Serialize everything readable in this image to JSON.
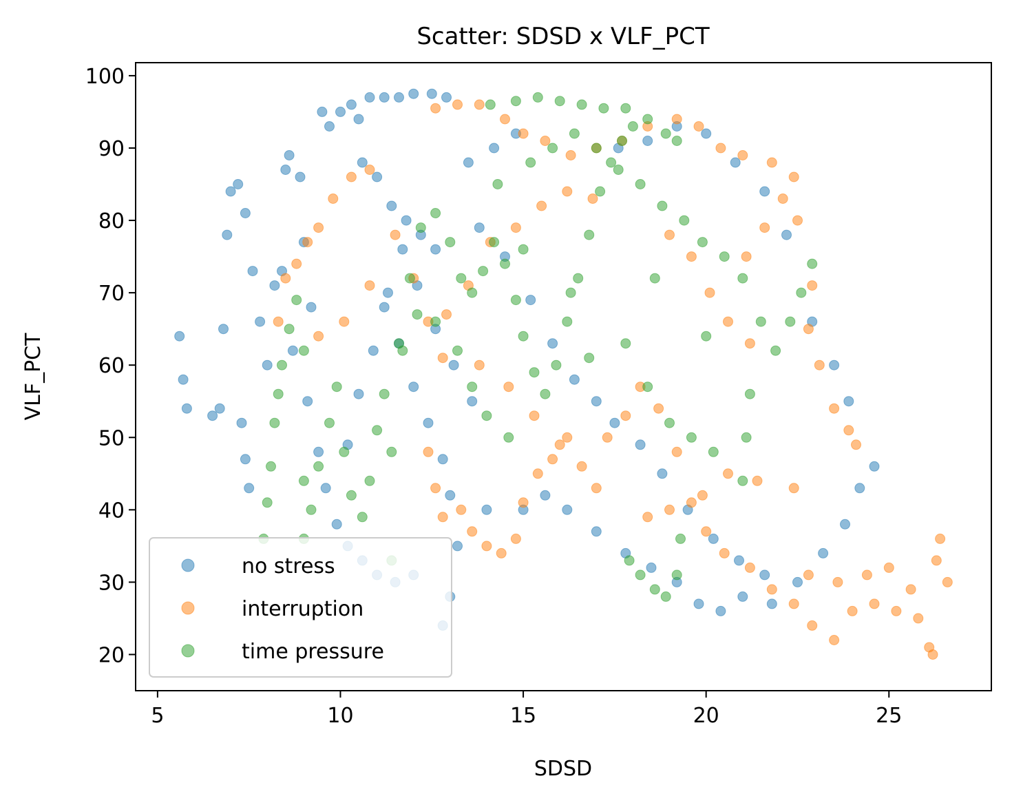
{
  "chart_data": {
    "type": "scatter",
    "title": "Scatter: SDSD x VLF_PCT",
    "xlabel": "SDSD",
    "ylabel": "VLF_PCT",
    "xlim": [
      4.4,
      27.8
    ],
    "ylim": [
      15,
      101.8
    ],
    "xticks": [
      5,
      10,
      15,
      20,
      25
    ],
    "yticks": [
      20,
      30,
      40,
      50,
      60,
      70,
      80,
      90,
      100
    ],
    "legend": "lower-left",
    "series": [
      {
        "name": "no stress",
        "color": "#1f77b4",
        "points": [
          [
            5.6,
            64
          ],
          [
            5.7,
            58
          ],
          [
            5.8,
            54
          ],
          [
            6.5,
            53
          ],
          [
            6.7,
            54
          ],
          [
            6.8,
            65
          ],
          [
            6.9,
            78
          ],
          [
            7.0,
            84
          ],
          [
            7.2,
            85
          ],
          [
            7.4,
            81
          ],
          [
            7.6,
            73
          ],
          [
            7.8,
            66
          ],
          [
            8.0,
            60
          ],
          [
            8.2,
            71
          ],
          [
            8.5,
            87
          ],
          [
            8.6,
            89
          ],
          [
            8.9,
            86
          ],
          [
            9.0,
            77
          ],
          [
            9.2,
            68
          ],
          [
            9.5,
            95
          ],
          [
            9.7,
            93
          ],
          [
            10.0,
            95
          ],
          [
            10.3,
            96
          ],
          [
            10.5,
            94
          ],
          [
            10.8,
            97
          ],
          [
            11.2,
            97
          ],
          [
            11.6,
            97
          ],
          [
            12.0,
            97.5
          ],
          [
            12.5,
            97.5
          ],
          [
            12.9,
            97
          ],
          [
            10.6,
            88
          ],
          [
            11.0,
            86
          ],
          [
            11.4,
            82
          ],
          [
            11.8,
            80
          ],
          [
            12.2,
            78
          ],
          [
            12.6,
            76
          ],
          [
            11.2,
            68
          ],
          [
            11.6,
            63
          ],
          [
            12.0,
            57
          ],
          [
            12.4,
            52
          ],
          [
            12.8,
            47
          ],
          [
            13.0,
            42
          ],
          [
            13.2,
            35
          ],
          [
            13.0,
            28
          ],
          [
            12.8,
            24
          ],
          [
            7.3,
            52
          ],
          [
            7.4,
            47
          ],
          [
            7.5,
            43
          ],
          [
            8.4,
            73
          ],
          [
            8.7,
            62
          ],
          [
            9.1,
            55
          ],
          [
            9.4,
            48
          ],
          [
            9.6,
            43
          ],
          [
            9.9,
            38
          ],
          [
            10.2,
            35
          ],
          [
            10.6,
            33
          ],
          [
            11.0,
            31
          ],
          [
            11.5,
            30
          ],
          [
            12.0,
            31
          ],
          [
            14.0,
            40
          ],
          [
            15.0,
            40
          ],
          [
            15.6,
            42
          ],
          [
            16.2,
            40
          ],
          [
            17.0,
            37
          ],
          [
            17.8,
            34
          ],
          [
            18.5,
            32
          ],
          [
            19.2,
            30
          ],
          [
            19.8,
            27
          ],
          [
            20.4,
            26
          ],
          [
            21.0,
            28
          ],
          [
            21.8,
            27
          ],
          [
            22.5,
            30
          ],
          [
            23.2,
            34
          ],
          [
            23.8,
            38
          ],
          [
            24.2,
            43
          ],
          [
            24.6,
            46
          ],
          [
            23.9,
            55
          ],
          [
            23.5,
            60
          ],
          [
            22.9,
            66
          ],
          [
            22.2,
            78
          ],
          [
            21.6,
            84
          ],
          [
            20.8,
            88
          ],
          [
            20.0,
            92
          ],
          [
            19.2,
            93
          ],
          [
            18.4,
            91
          ],
          [
            17.6,
            90
          ],
          [
            14.8,
            92
          ],
          [
            14.2,
            90
          ],
          [
            13.5,
            88
          ],
          [
            13.8,
            79
          ],
          [
            14.5,
            75
          ],
          [
            15.2,
            69
          ],
          [
            15.8,
            63
          ],
          [
            16.4,
            58
          ],
          [
            17.0,
            55
          ],
          [
            17.5,
            52
          ],
          [
            18.2,
            49
          ],
          [
            18.8,
            45
          ],
          [
            19.5,
            40
          ],
          [
            20.2,
            36
          ],
          [
            20.9,
            33
          ],
          [
            21.6,
            31
          ],
          [
            10.2,
            49
          ],
          [
            10.5,
            56
          ],
          [
            10.9,
            62
          ],
          [
            11.3,
            70
          ],
          [
            11.7,
            76
          ],
          [
            12.1,
            71
          ],
          [
            12.6,
            65
          ],
          [
            13.1,
            60
          ],
          [
            13.6,
            55
          ]
        ]
      },
      {
        "name": "interruption",
        "color": "#ff7f0e",
        "points": [
          [
            12.6,
            95.5
          ],
          [
            13.2,
            96
          ],
          [
            13.8,
            96
          ],
          [
            14.5,
            94
          ],
          [
            15.0,
            92
          ],
          [
            15.6,
            91
          ],
          [
            16.3,
            89
          ],
          [
            17.0,
            90
          ],
          [
            17.7,
            91
          ],
          [
            18.4,
            93
          ],
          [
            19.2,
            94
          ],
          [
            19.8,
            93
          ],
          [
            20.4,
            90
          ],
          [
            21.0,
            89
          ],
          [
            21.8,
            88
          ],
          [
            22.4,
            86
          ],
          [
            22.5,
            80
          ],
          [
            22.1,
            83
          ],
          [
            21.6,
            79
          ],
          [
            21.1,
            75
          ],
          [
            22.9,
            71
          ],
          [
            22.8,
            65
          ],
          [
            23.1,
            60
          ],
          [
            23.5,
            54
          ],
          [
            23.9,
            51
          ],
          [
            24.1,
            49
          ],
          [
            22.4,
            43
          ],
          [
            21.4,
            44
          ],
          [
            20.6,
            45
          ],
          [
            19.9,
            42
          ],
          [
            19.0,
            40
          ],
          [
            18.4,
            39
          ],
          [
            8.3,
            66
          ],
          [
            8.5,
            72
          ],
          [
            8.8,
            74
          ],
          [
            9.1,
            77
          ],
          [
            9.4,
            79
          ],
          [
            9.8,
            83
          ],
          [
            10.3,
            86
          ],
          [
            10.8,
            87
          ],
          [
            11.5,
            78
          ],
          [
            12.0,
            72
          ],
          [
            12.4,
            66
          ],
          [
            12.8,
            61
          ],
          [
            12.4,
            48
          ],
          [
            12.6,
            43
          ],
          [
            12.8,
            39
          ],
          [
            13.3,
            40
          ],
          [
            13.6,
            37
          ],
          [
            14.0,
            35
          ],
          [
            14.4,
            34
          ],
          [
            14.8,
            36
          ],
          [
            15.0,
            41
          ],
          [
            15.4,
            45
          ],
          [
            15.8,
            47
          ],
          [
            16.2,
            50
          ],
          [
            16.6,
            46
          ],
          [
            17.0,
            43
          ],
          [
            17.3,
            50
          ],
          [
            17.8,
            53
          ],
          [
            18.2,
            57
          ],
          [
            18.7,
            54
          ],
          [
            19.2,
            48
          ],
          [
            19.6,
            41
          ],
          [
            20.0,
            37
          ],
          [
            20.5,
            34
          ],
          [
            21.2,
            32
          ],
          [
            21.8,
            29
          ],
          [
            22.4,
            27
          ],
          [
            22.9,
            24
          ],
          [
            23.5,
            22
          ],
          [
            24.0,
            26
          ],
          [
            24.6,
            27
          ],
          [
            25.2,
            26
          ],
          [
            25.8,
            25
          ],
          [
            26.1,
            21
          ],
          [
            26.2,
            20
          ],
          [
            26.3,
            33
          ],
          [
            26.4,
            36
          ],
          [
            26.6,
            30
          ],
          [
            25.6,
            29
          ],
          [
            25.0,
            32
          ],
          [
            24.4,
            31
          ],
          [
            23.6,
            30
          ],
          [
            22.8,
            31
          ],
          [
            21.2,
            63
          ],
          [
            20.6,
            66
          ],
          [
            20.1,
            70
          ],
          [
            19.6,
            75
          ],
          [
            19.0,
            78
          ],
          [
            16.9,
            83
          ],
          [
            16.2,
            84
          ],
          [
            15.5,
            82
          ],
          [
            14.8,
            79
          ],
          [
            14.1,
            77
          ],
          [
            13.5,
            71
          ],
          [
            12.9,
            67
          ],
          [
            10.8,
            71
          ],
          [
            10.1,
            66
          ],
          [
            9.4,
            64
          ],
          [
            13.8,
            60
          ],
          [
            14.6,
            57
          ],
          [
            15.3,
            53
          ],
          [
            16.0,
            49
          ]
        ]
      },
      {
        "name": "time pressure",
        "color": "#2ca02c",
        "points": [
          [
            7.9,
            36
          ],
          [
            8.0,
            41
          ],
          [
            8.1,
            46
          ],
          [
            8.2,
            52
          ],
          [
            8.3,
            56
          ],
          [
            8.4,
            60
          ],
          [
            8.6,
            65
          ],
          [
            8.8,
            69
          ],
          [
            9.0,
            62
          ],
          [
            9.0,
            44
          ],
          [
            9.0,
            36
          ],
          [
            9.2,
            40
          ],
          [
            9.4,
            46
          ],
          [
            9.7,
            52
          ],
          [
            9.9,
            57
          ],
          [
            10.1,
            48
          ],
          [
            10.3,
            42
          ],
          [
            10.6,
            39
          ],
          [
            10.8,
            44
          ],
          [
            11.0,
            51
          ],
          [
            11.2,
            56
          ],
          [
            11.4,
            48
          ],
          [
            11.4,
            33
          ],
          [
            11.6,
            63
          ],
          [
            11.9,
            72
          ],
          [
            12.2,
            79
          ],
          [
            12.6,
            81
          ],
          [
            13.0,
            77
          ],
          [
            13.3,
            72
          ],
          [
            13.6,
            70
          ],
          [
            13.9,
            73
          ],
          [
            14.2,
            77
          ],
          [
            14.5,
            74
          ],
          [
            14.8,
            69
          ],
          [
            15.0,
            64
          ],
          [
            15.3,
            59
          ],
          [
            15.6,
            56
          ],
          [
            15.9,
            60
          ],
          [
            16.2,
            66
          ],
          [
            16.5,
            72
          ],
          [
            16.8,
            78
          ],
          [
            17.1,
            84
          ],
          [
            17.4,
            88
          ],
          [
            17.7,
            91
          ],
          [
            18.0,
            93
          ],
          [
            18.4,
            94
          ],
          [
            18.9,
            92
          ],
          [
            19.2,
            91
          ],
          [
            14.1,
            96
          ],
          [
            14.8,
            96.5
          ],
          [
            15.4,
            97
          ],
          [
            16.0,
            96.5
          ],
          [
            16.6,
            96
          ],
          [
            17.2,
            95.5
          ],
          [
            17.8,
            95.5
          ],
          [
            15.2,
            88
          ],
          [
            15.8,
            90
          ],
          [
            16.4,
            92
          ],
          [
            17.0,
            90
          ],
          [
            17.6,
            87
          ],
          [
            18.2,
            85
          ],
          [
            18.8,
            82
          ],
          [
            19.4,
            80
          ],
          [
            19.9,
            77
          ],
          [
            20.5,
            75
          ],
          [
            21.0,
            72
          ],
          [
            21.5,
            66
          ],
          [
            21.9,
            62
          ],
          [
            22.3,
            66
          ],
          [
            22.6,
            70
          ],
          [
            22.9,
            74
          ],
          [
            21.2,
            56
          ],
          [
            21.1,
            50
          ],
          [
            21.0,
            44
          ],
          [
            20.2,
            48
          ],
          [
            19.6,
            50
          ],
          [
            19.0,
            52
          ],
          [
            18.4,
            57
          ],
          [
            17.8,
            63
          ],
          [
            14.0,
            53
          ],
          [
            14.6,
            50
          ],
          [
            13.6,
            57
          ],
          [
            13.2,
            62
          ],
          [
            12.6,
            66
          ],
          [
            12.1,
            67
          ],
          [
            11.7,
            62
          ],
          [
            17.9,
            33
          ],
          [
            18.2,
            31
          ],
          [
            18.6,
            29
          ],
          [
            18.9,
            28
          ],
          [
            19.2,
            31
          ],
          [
            19.3,
            36
          ],
          [
            15.0,
            76
          ],
          [
            16.3,
            70
          ],
          [
            18.6,
            72
          ],
          [
            20.0,
            64
          ],
          [
            16.8,
            61
          ],
          [
            14.3,
            85
          ]
        ]
      }
    ]
  }
}
